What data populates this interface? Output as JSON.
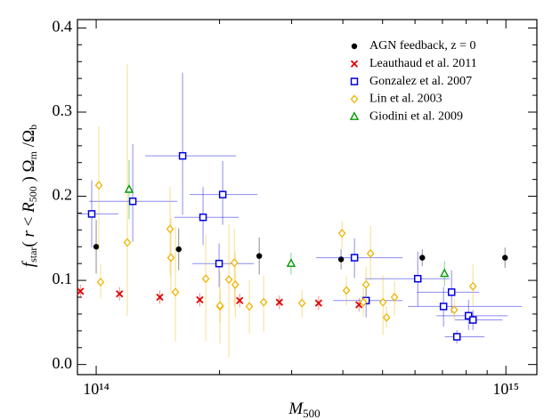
{
  "chart_data": {
    "type": "scatter",
    "x_label": [
      "M",
      "500"
    ],
    "y_label": [
      "f",
      "star",
      "( ",
      "r",
      " < ",
      "R",
      "500",
      " ) Ω",
      "m",
      " /Ω",
      "b"
    ],
    "xscale": "log",
    "xlim": [
      90000000000000.0,
      1190000000000000.0
    ],
    "ylim": [
      -0.012,
      0.41
    ],
    "xticks": [
      {
        "value": 100000000000000.0,
        "label": "10¹⁴"
      },
      {
        "value": 1000000000000000.0,
        "label": "10¹⁵"
      }
    ],
    "xminorticks": [
      200000000000000.0,
      300000000000000.0,
      400000000000000.0,
      500000000000000.0,
      600000000000000.0,
      700000000000000.0,
      800000000000000.0,
      900000000000000.0
    ],
    "yticks": [
      {
        "value": 0,
        "label": "0.0"
      },
      0.1,
      0.2,
      0.3,
      0.4
    ],
    "yminorticks": [
      0.02,
      0.04,
      0.06,
      0.08,
      0.12,
      0.14,
      0.16,
      0.18,
      0.22,
      0.24,
      0.26,
      0.28,
      0.32,
      0.34,
      0.36,
      0.38
    ],
    "legend": "upper right",
    "series": [
      {
        "name": "AGN feedback, z = 0",
        "color": "#000000",
        "marker": "circle",
        "x": [
          100000000000000.0,
          159000000000000.0,
          250000000000000.0,
          396000000000000.0,
          625000000000000.0,
          995000000000000.0
        ],
        "values": [
          0.14,
          0.137,
          0.129,
          0.125,
          0.127,
          0.127
        ],
        "yerr": [
          [
            0.032,
            0.032
          ],
          [
            0.025,
            0.025
          ],
          [
            0.022,
            0.022
          ],
          [
            0.012,
            0.012
          ],
          [
            0.01,
            0.01
          ],
          [
            0.012,
            0.012
          ]
        ]
      },
      {
        "name": "Leauthaud et al. 2011",
        "color": "#e00000",
        "marker": "x",
        "x": [
          91500000000000.0,
          114000000000000.0,
          143000000000000.0,
          179000000000000.0,
          224000000000000.0,
          280000000000000.0,
          349000000000000.0,
          438000000000000.0
        ],
        "values": [
          0.087,
          0.084,
          0.08,
          0.077,
          0.076,
          0.074,
          0.073,
          0.071
        ],
        "yerr": [
          [
            0.008,
            0.008
          ],
          [
            0.008,
            0.008
          ],
          [
            0.008,
            0.008
          ],
          [
            0.008,
            0.008
          ],
          [
            0.008,
            0.008
          ],
          [
            0.008,
            0.008
          ],
          [
            0.008,
            0.008
          ],
          [
            0.008,
            0.008
          ]
        ]
      },
      {
        "name": "Gonzalez et al. 2007",
        "color": "#0000dd",
        "marker": "square",
        "x": [
          97500000000000.0,
          122800000000000.0,
          162500000000000.0,
          182300000000000.0,
          203600000000000.0,
          199500000000000.0,
          427000000000000.0,
          455700000000000.0,
          609400000000000.0,
          704300000000000.0,
          736900000000000.0,
          810500000000000.0,
          831000000000000.0,
          759300000000000.0
        ],
        "values": [
          0.179,
          0.194,
          0.248,
          0.175,
          0.202,
          0.12,
          0.127,
          0.076,
          0.102,
          0.069,
          0.086,
          0.058,
          0.053,
          0.033
        ],
        "yerr": [
          [
            0.04,
            0.04
          ],
          [
            0.048,
            0.068
          ],
          [
            0.07,
            0.099
          ],
          [
            0.033,
            0.036
          ],
          [
            0.036,
            0.04
          ],
          [
            0.028,
            0.024
          ],
          [
            0.024,
            0.023
          ],
          [
            0.02,
            0.017
          ],
          [
            0.033,
            0.032
          ],
          [
            0.024,
            0.023
          ],
          [
            0.025,
            0.026
          ],
          [
            0.017,
            0.019
          ],
          [
            0.012,
            0.012
          ],
          [
            0.008,
            0.008
          ]
        ],
        "xerr": [
          [
            7000000000000.0,
            15800000000000.0
          ],
          [
            26700000000000.0,
            34900000000000.0
          ],
          [
            30800000000000.0,
            56900000000000.0
          ],
          [
            27000000000000.0,
            40400000000000.0
          ],
          [
            34500000000000.0,
            43900000000000.0
          ],
          [
            27800000000000.0,
            43100000000000.0
          ],
          [
            82700000000000.0,
            132600000000000.0
          ],
          [
            77000000000000.0,
            103900000000000.0
          ],
          [
            156000000000000.0,
            120000000000000.0
          ],
          [
            127600000000000.0,
            389700000000000.0
          ],
          [
            130600000000000.0,
            123700000000000.0
          ],
          [
            133800000000000.0,
            199500000000000.0
          ],
          [
            80000000000000.0,
            150000000000000.0
          ],
          [
            50000000000000.0,
            127000000000000.0
          ]
        ]
      },
      {
        "name": "Lin et al. 2003",
        "color": "#f0b400",
        "marker": "diamond",
        "x": [
          101500000000000.0,
          102500000000000.0,
          119100000000000.0,
          151500000000000.0,
          152200000000000.0,
          156100000000000.0,
          185100000000000.0,
          200500000000000.0,
          200500000000000.0,
          210800000000000.0,
          217400000000000.0,
          218500000000000.0,
          236500000000000.0,
          256300000000000.0,
          317800000000000.0,
          398100000000000.0,
          408100000000000.0,
          448800000000000.0,
          455700000000000.0,
          467300000000000.0,
          501200000000000.0,
          511300000000000.0,
          534700000000000.0,
          748000000000000.0,
          831000000000000.0
        ],
        "values": [
          0.213,
          0.098,
          0.145,
          0.161,
          0.127,
          0.086,
          0.102,
          0.069,
          0.07,
          0.101,
          0.121,
          0.095,
          0.069,
          0.074,
          0.073,
          0.156,
          0.088,
          0.074,
          0.095,
          0.132,
          0.074,
          0.056,
          0.08,
          0.065,
          0.093
        ],
        "yerr": [
          [
            0.077,
            0.07
          ],
          [
            0.019,
            0.021
          ],
          [
            0.087,
            0.212
          ],
          [
            0.055,
            0.05
          ],
          [
            0.043,
            0.047
          ],
          [
            0.059,
            0.078
          ],
          [
            0.074,
            0.052
          ],
          [
            0.019,
            0.021
          ],
          [
            0.045,
            0.04
          ],
          [
            0.092,
            0.066
          ],
          [
            0.052,
            0.04
          ],
          [
            0.039,
            0.038
          ],
          [
            0.032,
            0.031
          ],
          [
            0.035,
            0.031
          ],
          [
            0.017,
            0.016
          ],
          [
            0.017,
            0.015
          ],
          [
            0.018,
            0.018
          ],
          [
            0.017,
            0.017
          ],
          [
            0.021,
            0.021
          ],
          [
            0.032,
            0.033
          ],
          [
            0.039,
            0.032
          ],
          [
            0.013,
            0.013
          ],
          [
            0.022,
            0.019
          ],
          [
            0.013,
            0.013
          ],
          [
            0.024,
            0.026
          ]
        ]
      },
      {
        "name": "Giodini et al. 2009",
        "color": "#009900",
        "marker": "triangle",
        "x": [
          120300000000000.0,
          299000000000000.0,
          708000000000000.0
        ],
        "values": [
          0.208,
          0.12,
          0.108
        ],
        "yerr": [
          [
            0.035,
            0.035
          ],
          [
            0.013,
            0.013
          ],
          [
            0.015,
            0.015
          ]
        ]
      }
    ]
  }
}
